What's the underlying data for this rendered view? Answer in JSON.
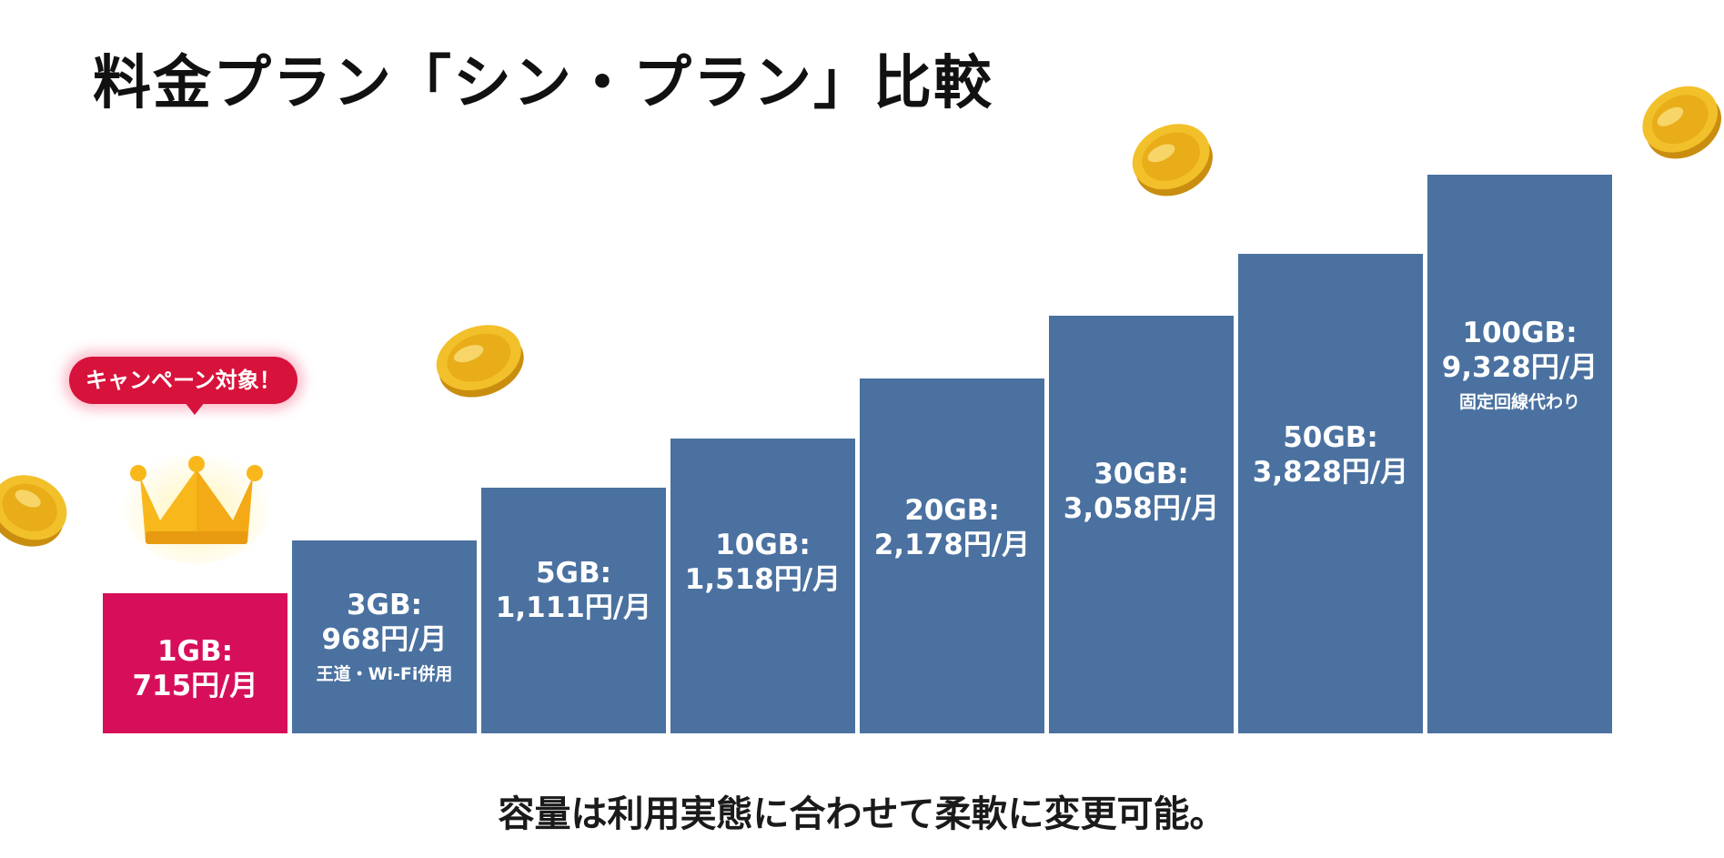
{
  "title": "料金プラン「シン・プラン」比較",
  "badge_text": "キャンペーン対象！",
  "footer_text": "容量は利用実態に合わせて柔軟に変更可能。",
  "colors": {
    "highlight_bar": "#d70f5a",
    "bar": "#4a71a0",
    "badge": "#d7123b",
    "crown": "#f8b81c",
    "coin": "#f2c02a",
    "text": "#111111"
  },
  "icons": [
    "crown-icon",
    "coin-icon"
  ],
  "chart_data": {
    "type": "bar",
    "title": "料金プラン「シン・プラン」比較",
    "categories": [
      "1GB",
      "3GB",
      "5GB",
      "10GB",
      "20GB",
      "30GB",
      "50GB",
      "100GB"
    ],
    "values": [
      715,
      968,
      1111,
      1518,
      2178,
      3058,
      3828,
      9328
    ],
    "unit": "円/月",
    "bar_labels": [
      {
        "line1": "1GB:",
        "line2": "715円/月",
        "note": ""
      },
      {
        "line1": "3GB:",
        "line2": "968円/月",
        "note": "王道・Wi-Fi併用"
      },
      {
        "line1": "5GB:",
        "line2": "1,111円/月",
        "note": ""
      },
      {
        "line1": "10GB:",
        "line2": "1,518円/月",
        "note": ""
      },
      {
        "line1": "20GB:",
        "line2": "2,178円/月",
        "note": ""
      },
      {
        "line1": "30GB:",
        "line2": "3,058円/月",
        "note": ""
      },
      {
        "line1": "50GB:",
        "line2": "3,828円/月",
        "note": ""
      },
      {
        "line1": "100GB:",
        "line2": "9,328円/月",
        "note": "固定回線代わり"
      }
    ],
    "highlighted_index": 0,
    "xlabel": "",
    "ylabel": "",
    "grid": false,
    "legend": "none"
  }
}
